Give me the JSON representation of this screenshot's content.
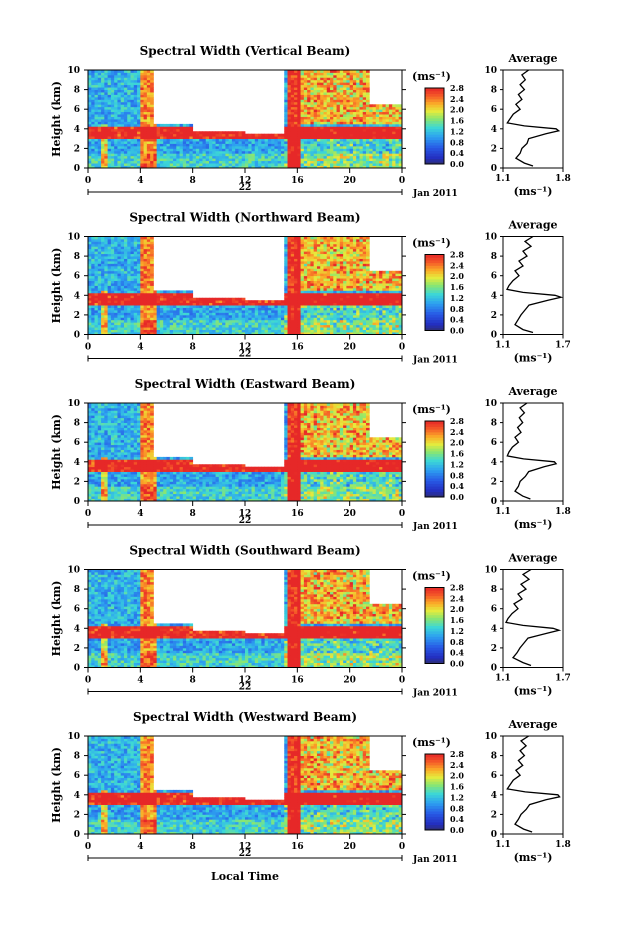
{
  "figure": {
    "ylabel": "Height (km)",
    "date_label": "Jan 2011",
    "bottom_xlabel": "Local Time",
    "unit_label": "(ms⁻¹)",
    "avg_title": "Average",
    "avg_xlabel": "(ms⁻¹)"
  },
  "chart_data": [
    {
      "type": "heatmap",
      "title": "Spectral Width (Vertical Beam)",
      "ylabel": "Height (km)",
      "ylim": [
        0,
        10
      ],
      "yticks": [
        "0",
        "2",
        "4",
        "6",
        "8",
        "10"
      ],
      "xlim": [
        0,
        24
      ],
      "xticks": [
        "0",
        "4",
        "8",
        "12",
        "16",
        "20",
        "0"
      ],
      "date_tick": "22",
      "colorbar": {
        "unit": "(ms⁻¹)",
        "range": [
          0.0,
          2.8
        ],
        "ticks": [
          "2.8",
          "2.4",
          "2.0",
          "1.6",
          "1.2",
          "0.8",
          "0.4",
          "0.0"
        ]
      },
      "average_profile": {
        "title": "Average",
        "xlabel": "(ms⁻¹)",
        "xlim": [
          1.1,
          1.8
        ],
        "xticks": [
          "1.1",
          "1.8"
        ],
        "yticks": [
          "0",
          "2",
          "4",
          "6",
          "8",
          "10"
        ],
        "height_km": [
          0.2,
          0.5,
          1.0,
          1.5,
          2.0,
          2.5,
          3.0,
          3.5,
          3.8,
          4.0,
          4.3,
          4.6,
          5.0,
          5.5,
          6.0,
          6.5,
          7.0,
          7.5,
          8.0,
          8.5,
          9.0,
          9.5,
          10.0
        ],
        "values": [
          1.45,
          1.35,
          1.25,
          1.3,
          1.32,
          1.38,
          1.4,
          1.6,
          1.75,
          1.72,
          1.35,
          1.15,
          1.18,
          1.22,
          1.3,
          1.25,
          1.32,
          1.28,
          1.35,
          1.3,
          1.36,
          1.32,
          1.4
        ]
      }
    },
    {
      "type": "heatmap",
      "title": "Spectral Width (Northward Beam)",
      "ylabel": "Height (km)",
      "ylim": [
        0,
        10
      ],
      "yticks": [
        "0",
        "2",
        "4",
        "6",
        "8",
        "10"
      ],
      "xlim": [
        0,
        24
      ],
      "xticks": [
        "0",
        "4",
        "8",
        "12",
        "16",
        "20",
        "0"
      ],
      "date_tick": "22",
      "colorbar": {
        "unit": "(ms⁻¹)",
        "range": [
          0.0,
          2.8
        ],
        "ticks": [
          "2.8",
          "2.4",
          "2.0",
          "1.6",
          "1.2",
          "0.8",
          "0.4",
          "0.0"
        ]
      },
      "average_profile": {
        "title": "Average",
        "xlabel": "(ms⁻¹)",
        "xlim": [
          1.1,
          1.7
        ],
        "xticks": [
          "1.1",
          "1.7"
        ],
        "yticks": [
          "0",
          "2",
          "4",
          "6",
          "8",
          "10"
        ],
        "height_km": [
          0.2,
          0.5,
          1.0,
          1.5,
          2.0,
          2.5,
          3.0,
          3.5,
          3.8,
          4.0,
          4.3,
          4.6,
          5.0,
          5.5,
          6.0,
          6.5,
          7.0,
          7.5,
          8.0,
          8.5,
          9.0,
          9.5,
          10.0
        ],
        "values": [
          1.4,
          1.3,
          1.22,
          1.25,
          1.28,
          1.32,
          1.36,
          1.55,
          1.68,
          1.62,
          1.3,
          1.14,
          1.16,
          1.2,
          1.26,
          1.22,
          1.3,
          1.26,
          1.34,
          1.3,
          1.38,
          1.32,
          1.4
        ]
      }
    },
    {
      "type": "heatmap",
      "title": "Spectral Width (Eastward Beam)",
      "ylabel": "Height (km)",
      "ylim": [
        0,
        10
      ],
      "yticks": [
        "0",
        "2",
        "4",
        "6",
        "8",
        "10"
      ],
      "xlim": [
        0,
        24
      ],
      "xticks": [
        "0",
        "4",
        "8",
        "12",
        "16",
        "20",
        "0"
      ],
      "date_tick": "22",
      "colorbar": {
        "unit": "(ms⁻¹)",
        "range": [
          0.0,
          2.8
        ],
        "ticks": [
          "2.8",
          "2.4",
          "2.0",
          "1.6",
          "1.2",
          "0.8",
          "0.4",
          "0.0"
        ]
      },
      "average_profile": {
        "title": "Average",
        "xlabel": "(ms⁻¹)",
        "xlim": [
          1.1,
          1.8
        ],
        "xticks": [
          "1.1",
          "1.8"
        ],
        "yticks": [
          "0",
          "2",
          "4",
          "6",
          "8",
          "10"
        ],
        "height_km": [
          0.2,
          0.5,
          1.0,
          1.5,
          2.0,
          2.5,
          3.0,
          3.5,
          3.8,
          4.0,
          4.3,
          4.6,
          5.0,
          5.5,
          6.0,
          6.5,
          7.0,
          7.5,
          8.0,
          8.5,
          9.0,
          9.5,
          10.0
        ],
        "values": [
          1.42,
          1.33,
          1.24,
          1.28,
          1.3,
          1.36,
          1.4,
          1.58,
          1.72,
          1.7,
          1.34,
          1.15,
          1.17,
          1.21,
          1.28,
          1.24,
          1.31,
          1.27,
          1.33,
          1.29,
          1.35,
          1.3,
          1.38
        ]
      }
    },
    {
      "type": "heatmap",
      "title": "Spectral Width (Southward Beam)",
      "ylabel": "Height (km)",
      "ylim": [
        0,
        10
      ],
      "yticks": [
        "0",
        "2",
        "4",
        "6",
        "8",
        "10"
      ],
      "xlim": [
        0,
        24
      ],
      "xticks": [
        "0",
        "4",
        "8",
        "12",
        "16",
        "20",
        "0"
      ],
      "date_tick": "22",
      "colorbar": {
        "unit": "(ms⁻¹)",
        "range": [
          0.0,
          2.8
        ],
        "ticks": [
          "2.8",
          "2.4",
          "2.0",
          "1.6",
          "1.2",
          "0.8",
          "0.4",
          "0.0"
        ]
      },
      "average_profile": {
        "title": "Average",
        "xlabel": "(ms⁻¹)",
        "xlim": [
          1.1,
          1.7
        ],
        "xticks": [
          "1.1",
          "1.7"
        ],
        "yticks": [
          "0",
          "2",
          "4",
          "6",
          "8",
          "10"
        ],
        "height_km": [
          0.2,
          0.5,
          1.0,
          1.5,
          2.0,
          2.5,
          3.0,
          3.5,
          3.8,
          4.0,
          4.3,
          4.6,
          5.0,
          5.5,
          6.0,
          6.5,
          7.0,
          7.5,
          8.0,
          8.5,
          9.0,
          9.5,
          10.0
        ],
        "values": [
          1.38,
          1.3,
          1.2,
          1.24,
          1.27,
          1.31,
          1.35,
          1.54,
          1.66,
          1.6,
          1.3,
          1.13,
          1.15,
          1.19,
          1.25,
          1.21,
          1.29,
          1.25,
          1.33,
          1.28,
          1.36,
          1.3,
          1.38
        ]
      }
    },
    {
      "type": "heatmap",
      "title": "Spectral Width (Westward Beam)",
      "ylabel": "Height (km)",
      "xlabel": "Local Time",
      "ylim": [
        0,
        10
      ],
      "yticks": [
        "0",
        "2",
        "4",
        "6",
        "8",
        "10"
      ],
      "xlim": [
        0,
        24
      ],
      "xticks": [
        "0",
        "4",
        "8",
        "12",
        "16",
        "20",
        "0"
      ],
      "date_tick": "22",
      "colorbar": {
        "unit": "(ms⁻¹)",
        "range": [
          0.0,
          2.8
        ],
        "ticks": [
          "2.8",
          "2.4",
          "2.0",
          "1.6",
          "1.2",
          "0.8",
          "0.4",
          "0.0"
        ]
      },
      "average_profile": {
        "title": "Average",
        "xlabel": "(ms⁻¹)",
        "xlim": [
          1.1,
          1.8
        ],
        "xticks": [
          "1.1",
          "1.8"
        ],
        "yticks": [
          "0",
          "2",
          "4",
          "6",
          "8",
          "10"
        ],
        "height_km": [
          0.2,
          0.5,
          1.0,
          1.5,
          2.0,
          2.5,
          3.0,
          3.5,
          3.8,
          4.0,
          4.3,
          4.6,
          5.0,
          5.5,
          6.0,
          6.5,
          7.0,
          7.5,
          8.0,
          8.5,
          9.0,
          9.5,
          10.0
        ],
        "values": [
          1.44,
          1.34,
          1.24,
          1.28,
          1.31,
          1.37,
          1.41,
          1.6,
          1.76,
          1.74,
          1.36,
          1.15,
          1.18,
          1.22,
          1.3,
          1.25,
          1.33,
          1.28,
          1.35,
          1.3,
          1.37,
          1.31,
          1.4
        ]
      }
    }
  ]
}
